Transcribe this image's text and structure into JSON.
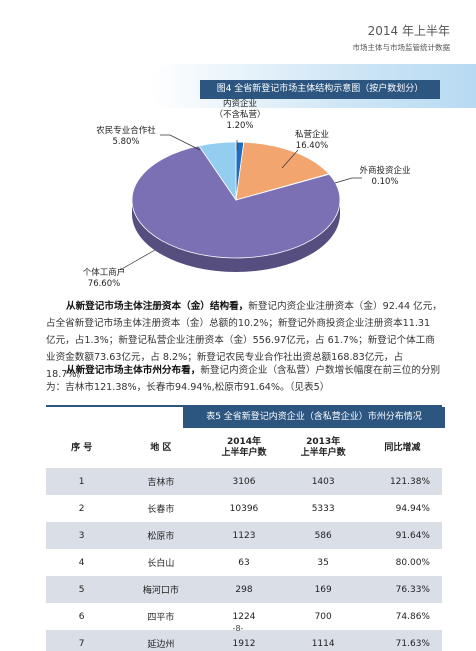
{
  "header": {
    "title": "2014 年上半年",
    "subtitle": "市场主体与市场监管统计数据"
  },
  "chart_data": {
    "type": "pie",
    "title": "图4 全省新登记市场主体结构示意图（按户数划分）",
    "categories": [
      "内资企业\n（不含私营）",
      "私营企业",
      "外商投资企业",
      "个体工商户",
      "农民专业合作社"
    ],
    "values": [
      1.2,
      16.4,
      0.1,
      76.6,
      5.8
    ],
    "value_labels": [
      "1.20%",
      "16.40%",
      "0.10%",
      "76.60%",
      "5.80%"
    ],
    "colors": [
      "#1f6cc0",
      "#f2a56e",
      "#8a7a66",
      "#7b70b4",
      "#93cdf0"
    ]
  },
  "paragraphs": [
    {
      "bold": "从新登记市场主体注册资本（金）结构看，",
      "text": "新登记内资企业注册资本（金）92.44 亿元，占全省新登记市场主体注册资本（金）总额的10.2%；新登记外商投资企业注册资本11.31 亿元，占1.3%；新登记私营企业注册资本（金）556.97亿元，占 61.7%；新登记个体工商业资金数额73.63亿元，占 8.2%；新登记农民专业合作社出资总额168.83亿元，占18.7%。"
    },
    {
      "bold": "从新登记市场主体市州分布看，",
      "text": "新登记内资企业（含私营）户数增长幅度在前三位的分别为：吉林市121.38%，长春市94.94%,松原市91.64%。（见表5）"
    }
  ],
  "table": {
    "title": "表5 全省新登记内资企业（含私营企业）市州分布情况",
    "headers": [
      "序  号",
      "地  区",
      "2014年\n上半年户数",
      "2013年\n上半年户数",
      "同比增减"
    ],
    "rows": [
      [
        "1",
        "吉林市",
        "3106",
        "1403",
        "121.38%"
      ],
      [
        "2",
        "长春市",
        "10396",
        "5333",
        "94.94%"
      ],
      [
        "3",
        "松原市",
        "1123",
        "586",
        "91.64%"
      ],
      [
        "4",
        "长白山",
        "63",
        "35",
        "80.00%"
      ],
      [
        "5",
        "梅河口市",
        "298",
        "169",
        "76.33%"
      ],
      [
        "6",
        "四平市",
        "1224",
        "700",
        "74.86%"
      ],
      [
        "7",
        "延边州",
        "1912",
        "1114",
        "71.63%"
      ]
    ]
  },
  "footer": {
    "page": "-8-"
  }
}
